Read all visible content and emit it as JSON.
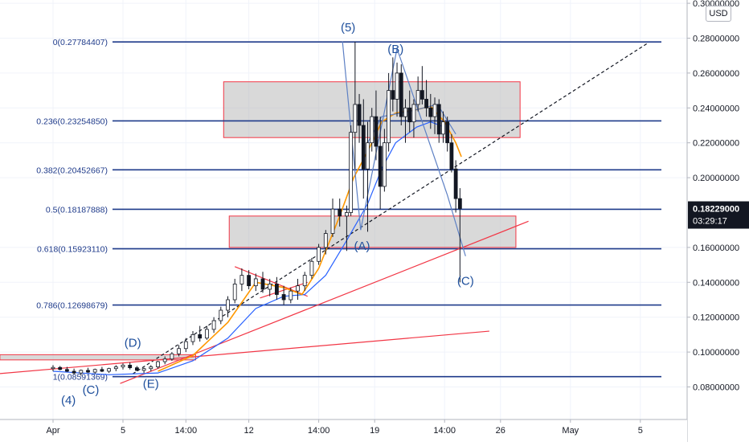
{
  "chart_data": {
    "type": "candlestick",
    "currency_badge": "USD",
    "price_axis": {
      "ticks": [
        "0.30000000",
        "0.28000000",
        "0.26000000",
        "0.24000000",
        "0.22000000",
        "0.20000000",
        "0.16000000",
        "0.14000000",
        "0.12000000",
        "0.10000000",
        "0.08000000"
      ],
      "tick_values": [
        0.3,
        0.28,
        0.26,
        0.24,
        0.22,
        0.2,
        0.16,
        0.14,
        0.12,
        0.1,
        0.08
      ],
      "range": [
        0.065,
        0.305
      ]
    },
    "time_axis": {
      "labels": [
        "Apr",
        "5",
        "14:00",
        "12",
        "14:00",
        "19",
        "14:00",
        "26",
        "May",
        "5"
      ],
      "positions_day": [
        0,
        5,
        9.5,
        14,
        19,
        23,
        28,
        32,
        37,
        42
      ]
    },
    "last_price": {
      "value": 0.18229,
      "label": "0.18229000",
      "countdown": "03:29:17",
      "color": "#131722"
    },
    "fib_levels": [
      {
        "ratio": 0,
        "price": 0.27784407,
        "label": "0(0.27784407)"
      },
      {
        "ratio": 0.236,
        "price": 0.2325485,
        "label": "0.236(0.23254850)"
      },
      {
        "ratio": 0.382,
        "price": 0.20452667,
        "label": "0.382(0.20452667)"
      },
      {
        "ratio": 0.5,
        "price": 0.18187888,
        "label": "0.5(0.18187888)"
      },
      {
        "ratio": 0.618,
        "price": 0.1592311,
        "label": "0.618(0.15923110)"
      },
      {
        "ratio": 0.786,
        "price": 0.12698679,
        "label": "0.786(0.12698679)"
      },
      {
        "ratio": 1,
        "price": 0.0859,
        "label": "1(0.08591369)"
      }
    ],
    "zones": [
      {
        "name": "upper-zone",
        "day": [
          12.2,
          33.4
        ],
        "price": [
          0.223,
          0.255
        ]
      },
      {
        "name": "middle-zone",
        "day": [
          12.6,
          33.1
        ],
        "price": [
          0.16,
          0.178
        ]
      },
      {
        "name": "lower-zone",
        "day": [
          -3.8,
          10.2
        ],
        "price": [
          0.0955,
          0.0985
        ]
      }
    ],
    "wave_labels": [
      {
        "text": "(5)",
        "day": 21.1,
        "price": 0.284
      },
      {
        "text": "(B)",
        "day": 24.5,
        "price": 0.2715
      },
      {
        "text": "(A)",
        "day": 22.1,
        "price": 0.1585
      },
      {
        "text": "(C)",
        "day": 29.5,
        "price": 0.1385
      },
      {
        "text": "(D)",
        "day": 5.7,
        "price": 0.103
      },
      {
        "text": "(C)",
        "day": 2.7,
        "price": 0.076
      },
      {
        "text": "(E)",
        "day": 7.0,
        "price": 0.0795
      },
      {
        "text": "(4)",
        "day": 1.1,
        "price": 0.07
      }
    ],
    "trend_lines": [
      {
        "name": "dashed-projection",
        "from": [
          5.7,
          0.0875
        ],
        "to": [
          42.5,
          0.277
        ],
        "color": "#131722",
        "dashed": true
      },
      {
        "name": "red-support-steep",
        "from": [
          4.8,
          0.082
        ],
        "to": [
          34.0,
          0.175
        ],
        "color": "#f23645"
      },
      {
        "name": "red-support-shallow",
        "from": [
          -4.0,
          0.0875
        ],
        "to": [
          31.2,
          0.112
        ],
        "color": "#f23645"
      },
      {
        "name": "red-triangle-top",
        "from": [
          13.0,
          0.149
        ],
        "to": [
          18.2,
          0.132
        ],
        "color": "#f23645"
      },
      {
        "name": "red-triangle-bottom",
        "from": [
          14.8,
          0.131
        ],
        "to": [
          18.2,
          0.14
        ],
        "color": "#f23645"
      }
    ],
    "wave_path": {
      "color": "#5d80c4",
      "points": [
        [
          20.7,
          0.278
        ],
        [
          22.0,
          0.17
        ],
        [
          24.6,
          0.274
        ],
        [
          28.2,
          0.19
        ],
        [
          29.5,
          0.155
        ]
      ]
    },
    "wave_path_secondary": {
      "color": "#5d80c4",
      "points": [
        [
          22.5,
          0.22
        ],
        [
          23.5,
          0.235
        ],
        [
          25.5,
          0.238
        ],
        [
          27.5,
          0.242
        ],
        [
          28.8,
          0.225
        ]
      ]
    },
    "ma_fast": {
      "color": "#ff9800",
      "points": [
        [
          7.5,
          0.089
        ],
        [
          10,
          0.098
        ],
        [
          12.5,
          0.117
        ],
        [
          14.5,
          0.14
        ],
        [
          16.5,
          0.137
        ],
        [
          17.8,
          0.133
        ],
        [
          19,
          0.148
        ],
        [
          20.5,
          0.178
        ],
        [
          21.5,
          0.2
        ],
        [
          22.5,
          0.215
        ],
        [
          23.5,
          0.232
        ],
        [
          24.5,
          0.237
        ],
        [
          26,
          0.239
        ],
        [
          27,
          0.241
        ],
        [
          28,
          0.232
        ],
        [
          28.8,
          0.22
        ],
        [
          29.2,
          0.212
        ]
      ]
    },
    "ma_slow": {
      "color": "#2962ff",
      "points": [
        [
          0,
          0.089
        ],
        [
          4,
          0.087
        ],
        [
          7.5,
          0.088
        ],
        [
          10,
          0.095
        ],
        [
          12.5,
          0.108
        ],
        [
          14.5,
          0.125
        ],
        [
          16.5,
          0.132
        ],
        [
          18,
          0.133
        ],
        [
          19.5,
          0.144
        ],
        [
          21,
          0.164
        ],
        [
          22.5,
          0.185
        ],
        [
          23.5,
          0.205
        ],
        [
          24.5,
          0.22
        ],
        [
          26,
          0.229
        ],
        [
          27,
          0.232
        ],
        [
          28,
          0.229
        ]
      ]
    },
    "series": [
      {
        "name": "candles",
        "ohlc": [
          [
            0.0,
            0.0905,
            0.0925,
            0.089,
            0.0912
          ],
          [
            0.5,
            0.0912,
            0.092,
            0.0895,
            0.09
          ],
          [
            1.0,
            0.09,
            0.0915,
            0.0885,
            0.089
          ],
          [
            1.5,
            0.089,
            0.0905,
            0.087,
            0.088
          ],
          [
            2.0,
            0.088,
            0.09,
            0.0865,
            0.0895
          ],
          [
            2.5,
            0.0895,
            0.091,
            0.088,
            0.0885
          ],
          [
            3.0,
            0.0885,
            0.0905,
            0.0875,
            0.09
          ],
          [
            3.5,
            0.09,
            0.0915,
            0.0885,
            0.089
          ],
          [
            4.0,
            0.089,
            0.091,
            0.088,
            0.0905
          ],
          [
            4.5,
            0.0905,
            0.0925,
            0.089,
            0.0915
          ],
          [
            5.0,
            0.0915,
            0.0935,
            0.09,
            0.0925
          ],
          [
            5.5,
            0.0925,
            0.094,
            0.09,
            0.091
          ],
          [
            6.0,
            0.091,
            0.092,
            0.089,
            0.0895
          ],
          [
            6.5,
            0.0895,
            0.091,
            0.088,
            0.0905
          ],
          [
            7.0,
            0.0905,
            0.0925,
            0.089,
            0.0915
          ],
          [
            7.5,
            0.0915,
            0.095,
            0.0905,
            0.0945
          ],
          [
            8.0,
            0.0945,
            0.0975,
            0.093,
            0.096
          ],
          [
            8.5,
            0.096,
            0.1,
            0.095,
            0.099
          ],
          [
            9.0,
            0.099,
            0.104,
            0.0975,
            0.102
          ],
          [
            9.5,
            0.102,
            0.108,
            0.1,
            0.106
          ],
          [
            10.0,
            0.106,
            0.112,
            0.104,
            0.11
          ],
          [
            10.5,
            0.11,
            0.115,
            0.106,
            0.108
          ],
          [
            11.0,
            0.108,
            0.115,
            0.107,
            0.113
          ],
          [
            11.5,
            0.113,
            0.12,
            0.111,
            0.118
          ],
          [
            12.0,
            0.118,
            0.126,
            0.116,
            0.124
          ],
          [
            12.5,
            0.124,
            0.132,
            0.12,
            0.13
          ],
          [
            13.0,
            0.13,
            0.142,
            0.128,
            0.139
          ],
          [
            13.5,
            0.139,
            0.148,
            0.135,
            0.144
          ],
          [
            14.0,
            0.144,
            0.147,
            0.136,
            0.138
          ],
          [
            14.5,
            0.138,
            0.145,
            0.135,
            0.142
          ],
          [
            15.0,
            0.142,
            0.146,
            0.134,
            0.136
          ],
          [
            15.5,
            0.136,
            0.142,
            0.132,
            0.139
          ],
          [
            16.0,
            0.139,
            0.143,
            0.13,
            0.133
          ],
          [
            16.5,
            0.133,
            0.138,
            0.127,
            0.13
          ],
          [
            17.0,
            0.13,
            0.137,
            0.128,
            0.135
          ],
          [
            17.5,
            0.135,
            0.142,
            0.13,
            0.138
          ],
          [
            18.0,
            0.138,
            0.146,
            0.135,
            0.144
          ],
          [
            18.5,
            0.144,
            0.154,
            0.142,
            0.152
          ],
          [
            19.0,
            0.152,
            0.162,
            0.15,
            0.16
          ],
          [
            19.5,
            0.16,
            0.17,
            0.156,
            0.168
          ],
          [
            20.0,
            0.168,
            0.188,
            0.166,
            0.182
          ],
          [
            20.5,
            0.182,
            0.188,
            0.172,
            0.178
          ],
          [
            21.0,
            0.178,
            0.184,
            0.158,
            0.18
          ],
          [
            21.3,
            0.18,
            0.23,
            0.178,
            0.226
          ],
          [
            21.6,
            0.226,
            0.278,
            0.205,
            0.242
          ],
          [
            21.9,
            0.242,
            0.248,
            0.22,
            0.23
          ],
          [
            22.2,
            0.23,
            0.245,
            0.188,
            0.205
          ],
          [
            22.5,
            0.205,
            0.232,
            0.169,
            0.22
          ],
          [
            22.8,
            0.22,
            0.24,
            0.215,
            0.235
          ],
          [
            23.1,
            0.235,
            0.25,
            0.21,
            0.218
          ],
          [
            23.4,
            0.218,
            0.235,
            0.182,
            0.195
          ],
          [
            23.7,
            0.195,
            0.228,
            0.192,
            0.22
          ],
          [
            24.0,
            0.22,
            0.26,
            0.215,
            0.25
          ],
          [
            24.3,
            0.25,
            0.269,
            0.238,
            0.245
          ],
          [
            24.6,
            0.245,
            0.266,
            0.235,
            0.26
          ],
          [
            24.9,
            0.26,
            0.265,
            0.23,
            0.235
          ],
          [
            25.2,
            0.235,
            0.245,
            0.22,
            0.24
          ],
          [
            25.5,
            0.24,
            0.25,
            0.226,
            0.232
          ],
          [
            25.8,
            0.232,
            0.245,
            0.223,
            0.242
          ],
          [
            26.1,
            0.242,
            0.258,
            0.238,
            0.25
          ],
          [
            26.4,
            0.25,
            0.264,
            0.242,
            0.245
          ],
          [
            26.7,
            0.245,
            0.256,
            0.235,
            0.24
          ],
          [
            27.0,
            0.24,
            0.248,
            0.228,
            0.235
          ],
          [
            27.3,
            0.235,
            0.246,
            0.225,
            0.242
          ],
          [
            27.6,
            0.242,
            0.245,
            0.22,
            0.225
          ],
          [
            27.9,
            0.225,
            0.238,
            0.22,
            0.232
          ],
          [
            28.2,
            0.232,
            0.235,
            0.215,
            0.22
          ],
          [
            28.5,
            0.22,
            0.225,
            0.203,
            0.205
          ],
          [
            28.8,
            0.205,
            0.21,
            0.18,
            0.188
          ],
          [
            29.1,
            0.188,
            0.194,
            0.14,
            0.1823
          ]
        ]
      }
    ]
  }
}
